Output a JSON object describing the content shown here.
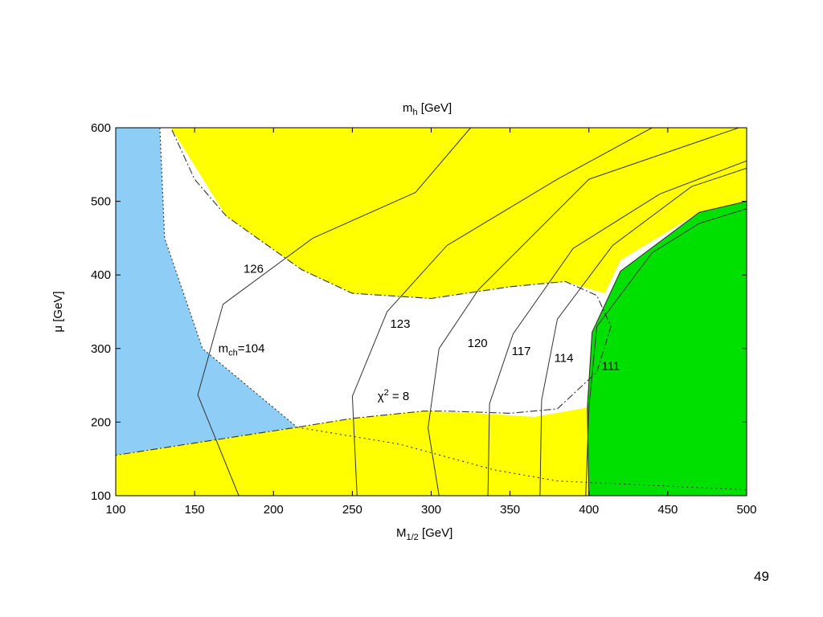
{
  "page": {
    "number": "49"
  },
  "chart_data": {
    "type": "contour",
    "title": {
      "main": "m",
      "sub": "h",
      "unit": " [GeV]"
    },
    "xlabel": {
      "main": "M",
      "sub": "1/2",
      "unit": " [GeV]"
    },
    "ylabel": "μ [GeV]",
    "xlim": [
      100,
      500
    ],
    "ylim": [
      100,
      600
    ],
    "xticks": [
      100,
      150,
      200,
      250,
      300,
      350,
      400,
      450,
      500
    ],
    "yticks": [
      100,
      200,
      300,
      400,
      500,
      600
    ],
    "colors": {
      "blue": "#8ecdf5",
      "yellow": "#ffff00",
      "green": "#00e000",
      "white": "#ffffff",
      "line": "#333333"
    },
    "regions": [
      {
        "name": "excluded-blue",
        "color": "blue",
        "points": [
          [
            100,
            600
          ],
          [
            128,
            600
          ],
          [
            131,
            450
          ],
          [
            155,
            300
          ],
          [
            215,
            193
          ],
          [
            100,
            155
          ]
        ]
      },
      {
        "name": "excluded-yellow-top",
        "color": "yellow",
        "points": [
          [
            135,
            600
          ],
          [
            500,
            600
          ],
          [
            500,
            500
          ],
          [
            470,
            485
          ],
          [
            420,
            420
          ],
          [
            410,
            375
          ],
          [
            385,
            391
          ],
          [
            350,
            384
          ],
          [
            300,
            368
          ],
          [
            250,
            375
          ],
          [
            218,
            407
          ],
          [
            170,
            480
          ]
        ]
      },
      {
        "name": "excluded-yellow-bottom",
        "color": "yellow",
        "points": [
          [
            100,
            155
          ],
          [
            200,
            188
          ],
          [
            250,
            205
          ],
          [
            295,
            215
          ],
          [
            330,
            212
          ],
          [
            365,
            207
          ],
          [
            400,
            220
          ],
          [
            400,
            100
          ],
          [
            100,
            100
          ]
        ]
      },
      {
        "name": "excluded-green",
        "color": "green",
        "points": [
          [
            400,
            100
          ],
          [
            500,
            100
          ],
          [
            500,
            500
          ],
          [
            470,
            485
          ],
          [
            420,
            405
          ],
          [
            402,
            322
          ],
          [
            399,
            220
          ]
        ]
      }
    ],
    "boundaries": [
      {
        "name": "chi2-contour-top",
        "dash": "9 3 2 3",
        "points": [
          [
            128,
            600
          ],
          [
            135,
            600
          ],
          [
            150,
            530
          ],
          [
            170,
            480
          ],
          [
            218,
            407
          ],
          [
            250,
            375
          ],
          [
            300,
            368
          ],
          [
            350,
            384
          ],
          [
            385,
            391
          ],
          [
            405,
            372
          ],
          [
            414,
            330
          ],
          [
            405,
            268
          ],
          [
            380,
            218
          ],
          [
            350,
            212
          ],
          [
            310,
            215
          ],
          [
            295,
            215
          ],
          [
            250,
            205
          ],
          [
            215,
            193
          ],
          [
            100,
            155
          ]
        ]
      },
      {
        "name": "blue-edge",
        "dash": "2 3",
        "points": [
          [
            128,
            600
          ],
          [
            131,
            450
          ],
          [
            155,
            300
          ],
          [
            215,
            193
          ]
        ]
      },
      {
        "name": "inner-dotted",
        "dash": "2 4",
        "points": [
          [
            215,
            193
          ],
          [
            280,
            170
          ],
          [
            340,
            135
          ],
          [
            380,
            120
          ],
          [
            460,
            112
          ],
          [
            500,
            108
          ]
        ]
      },
      {
        "name": "green-edge",
        "dash": "",
        "points": [
          [
            400,
            100
          ],
          [
            399,
            220
          ],
          [
            402,
            322
          ],
          [
            420,
            405
          ],
          [
            470,
            485
          ],
          [
            500,
            500
          ]
        ]
      }
    ],
    "contours": [
      {
        "label": "126",
        "value": 126,
        "points": [
          [
            178,
            100
          ],
          [
            152,
            237
          ],
          [
            168,
            360
          ],
          [
            225,
            450
          ],
          [
            290,
            512
          ],
          [
            325,
            600
          ]
        ]
      },
      {
        "label": "123",
        "value": 123,
        "points": [
          [
            253,
            100
          ],
          [
            250,
            235
          ],
          [
            272,
            350
          ],
          [
            310,
            440
          ],
          [
            380,
            530
          ],
          [
            440,
            600
          ]
        ]
      },
      {
        "label": "120",
        "value": 120,
        "points": [
          [
            305,
            100
          ],
          [
            298,
            192
          ],
          [
            305,
            300
          ],
          [
            330,
            380
          ],
          [
            400,
            530
          ],
          [
            495,
            600
          ]
        ]
      },
      {
        "label": "117",
        "value": 117,
        "points": [
          [
            336,
            100
          ],
          [
            337,
            225
          ],
          [
            352,
            320
          ],
          [
            390,
            436
          ],
          [
            445,
            510
          ],
          [
            500,
            555
          ]
        ]
      },
      {
        "label": "114",
        "value": 114,
        "points": [
          [
            369,
            100
          ],
          [
            370,
            230
          ],
          [
            380,
            340
          ],
          [
            415,
            440
          ],
          [
            465,
            520
          ],
          [
            500,
            545
          ]
        ]
      },
      {
        "label": "111",
        "value": 111,
        "points": [
          [
            398,
            100
          ],
          [
            400,
            220
          ],
          [
            405,
            330
          ],
          [
            440,
            430
          ],
          [
            470,
            470
          ],
          [
            500,
            490
          ]
        ]
      }
    ],
    "annotations": [
      {
        "name": "label-126",
        "text": "126",
        "x": 181,
        "y": 403
      },
      {
        "name": "label-123",
        "text": "123",
        "x": 274,
        "y": 328
      },
      {
        "name": "label-120",
        "text": "120",
        "x": 323,
        "y": 302
      },
      {
        "name": "label-117",
        "text": "117",
        "x": 351,
        "y": 291
      },
      {
        "name": "label-114",
        "text": "114",
        "x": 378,
        "y": 282
      },
      {
        "name": "label-111",
        "text": "111",
        "x": 408,
        "y": 271
      }
    ],
    "mch_label": {
      "main": "m",
      "sub": "ch",
      "rest": "=104",
      "x": 165,
      "y": 295
    },
    "chi2_label": {
      "main": "χ",
      "sup": "2",
      "rest": " = 8",
      "x": 266,
      "y": 230
    },
    "grid": false,
    "legend": "none"
  }
}
